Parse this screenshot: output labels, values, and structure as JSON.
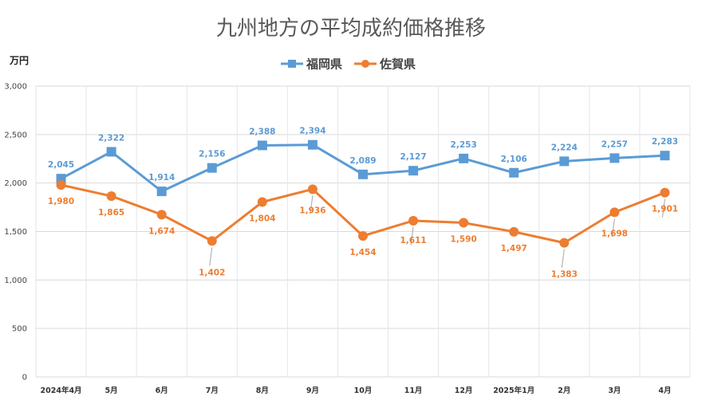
{
  "chart_data": {
    "type": "line",
    "title": "九州地方の平均成約価格推移",
    "ylabel": "万円",
    "xlabel": "",
    "categories": [
      "2024年4月",
      "5月",
      "6月",
      "7月",
      "8月",
      "9月",
      "10月",
      "11月",
      "12月",
      "2025年1月",
      "2月",
      "3月",
      "4月"
    ],
    "ylim": [
      0,
      3000
    ],
    "yticks": [
      0,
      500,
      1000,
      1500,
      2000,
      2500,
      3000
    ],
    "ytick_labels": [
      "0",
      "500",
      "1,000",
      "1,500",
      "2,000",
      "2,500",
      "3,000"
    ],
    "grid": true,
    "legend_position": "top-center",
    "series": [
      {
        "name": "福岡県",
        "color": "#5B9BD5",
        "marker": "square",
        "values": [
          2045,
          2322,
          1914,
          2156,
          2388,
          2394,
          2089,
          2127,
          2253,
          2106,
          2224,
          2257,
          2283
        ],
        "labels": [
          "2,045",
          "2,322",
          "1,914",
          "2,156",
          "2,388",
          "2,394",
          "2,089",
          "2,127",
          "2,253",
          "2,106",
          "2,224",
          "2,257",
          "2,283"
        ]
      },
      {
        "name": "佐賀県",
        "color": "#ED7D31",
        "marker": "circle",
        "values": [
          1980,
          1865,
          1674,
          1402,
          1804,
          1936,
          1454,
          1611,
          1590,
          1497,
          1383,
          1698,
          1901
        ],
        "labels": [
          "1,980",
          "1,865",
          "1,674",
          "1,402",
          "1,804",
          "1,936",
          "1,454",
          "1,611",
          "1,590",
          "1,497",
          "1,383",
          "1,698",
          "1,901"
        ]
      }
    ]
  }
}
